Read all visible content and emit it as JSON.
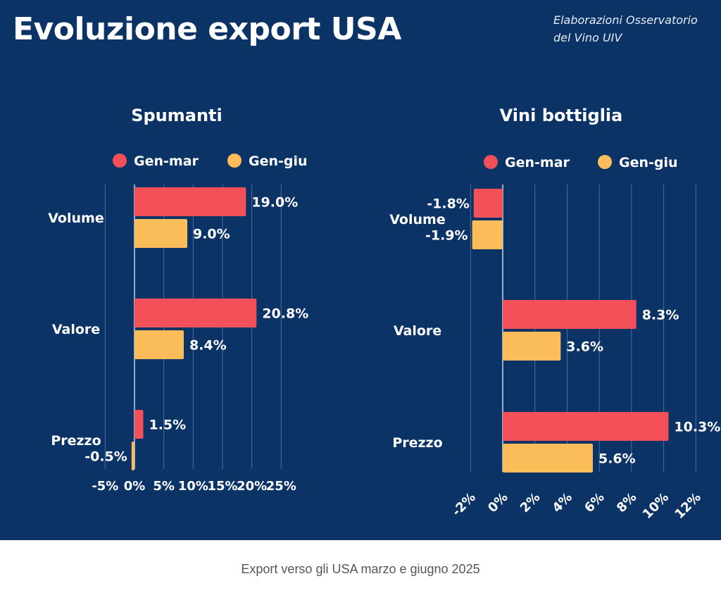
{
  "header": {
    "title": "Evoluzione export USA",
    "source_line1": "Elaborazioni Osservatorio",
    "source_line2": "del Vino UIV"
  },
  "caption": "Export verso gli USA marzo e giugno 2025",
  "colors": {
    "background": "#0b3366",
    "gen_mar": "#f4505a",
    "gen_giu": "#fbbd5a",
    "text": "#ffffff",
    "grid": "#4d6f9e"
  },
  "chart_data": [
    {
      "type": "bar",
      "orientation": "horizontal",
      "title": "Spumanti",
      "categories": [
        "Volume",
        "Valore",
        "Prezzo"
      ],
      "series": [
        {
          "name": "Gen-mar",
          "values": [
            19.0,
            20.8,
            1.5
          ]
        },
        {
          "name": "Gen-giu",
          "values": [
            9.0,
            8.4,
            -0.5
          ]
        }
      ],
      "value_labels": [
        [
          "19.0%",
          "20.8%",
          "1.5%"
        ],
        [
          "9.0%",
          "8.4%",
          "-0.5%"
        ]
      ],
      "xlim": [
        -5,
        25
      ],
      "xticks": [
        -5,
        0,
        5,
        10,
        15,
        20,
        25
      ],
      "xtick_labels": [
        "-5%",
        "0%",
        "5%",
        "10%",
        "15%",
        "20%",
        "25%"
      ],
      "legend": "top",
      "grid": true
    },
    {
      "type": "bar",
      "orientation": "horizontal",
      "title": "Vini bottiglia",
      "categories": [
        "Volume",
        "Valore",
        "Prezzo"
      ],
      "series": [
        {
          "name": "Gen-mar",
          "values": [
            -1.8,
            8.3,
            10.3
          ]
        },
        {
          "name": "Gen-giu",
          "values": [
            -1.9,
            3.6,
            5.6
          ]
        }
      ],
      "value_labels": [
        [
          "-1.8%",
          "8.3%",
          "10.3%"
        ],
        [
          "-1.9%",
          "3.6%",
          "5.6%"
        ]
      ],
      "xlim": [
        -2,
        12
      ],
      "xticks": [
        -2,
        0,
        2,
        4,
        6,
        8,
        10,
        12
      ],
      "xtick_labels": [
        "-2%",
        "0%",
        "2%",
        "4%",
        "6%",
        "8%",
        "10%",
        "12%"
      ],
      "legend": "top",
      "grid": true
    }
  ]
}
